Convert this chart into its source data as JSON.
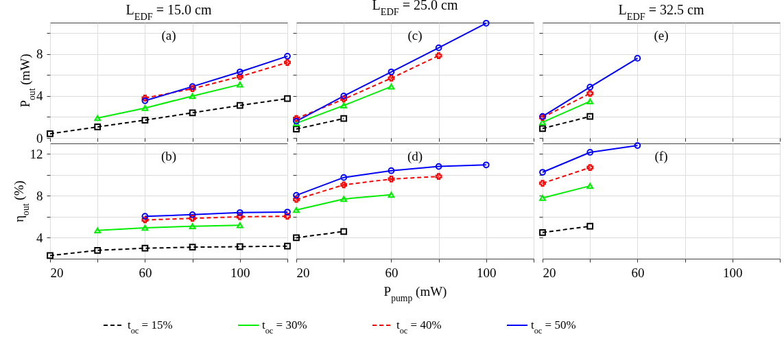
{
  "chart_data": [
    {
      "type": "line",
      "title": "L$_{EDF}$ = 15.0 cm",
      "ylabel": "P$_{out}$ (mW)",
      "annotations": [
        "(a)"
      ],
      "legend": "bottom",
      "x": [
        20,
        40,
        60,
        80,
        100,
        120
      ],
      "xlim": [
        20,
        120
      ],
      "xticks": [
        20,
        {
          "value": 40,
          "label": null
        },
        60,
        {
          "value": 80,
          "label": null
        },
        100,
        {
          "value": 120,
          "label": null
        }
      ],
      "ylim": [
        0,
        11
      ],
      "yticks": [
        0,
        {
          "value": 2,
          "label": null
        },
        4,
        {
          "value": 6,
          "label": null
        },
        8,
        {
          "value": 10,
          "label": null
        }
      ],
      "grid": true,
      "tick_labels": "y",
      "series": [
        {
          "name": "t$_{oc}$ = 15%",
          "color": "#000000",
          "marker": "square",
          "line_style": "dashed",
          "values": [
            0.4,
            1.05,
            1.7,
            2.4,
            3.1,
            3.75
          ]
        },
        {
          "name": "t$_{oc}$ = 30%",
          "color": "#00ee00",
          "marker": "triangle",
          "line_style": "solid",
          "values": [
            null,
            1.9,
            2.85,
            4.0,
            5.1,
            null
          ]
        },
        {
          "name": "t$_{oc}$ = 40%",
          "color": "#ff0000",
          "marker": "cross",
          "line_style": "dashed",
          "values": [
            null,
            null,
            3.8,
            4.7,
            5.85,
            7.2
          ]
        },
        {
          "name": "t$_{oc}$ = 50%",
          "color": "#0000ff",
          "marker": "circle",
          "line_style": "solid",
          "values": [
            null,
            null,
            3.55,
            4.9,
            6.3,
            7.8
          ]
        }
      ]
    },
    {
      "type": "line",
      "title": "L$_{EDF}$ = 25.0 cm",
      "annotations": [
        "(c)"
      ],
      "x": [
        20,
        40,
        60,
        80,
        100
      ],
      "xlim": [
        20,
        120
      ],
      "xticks": [
        20,
        {
          "value": 40,
          "label": null
        },
        60,
        {
          "value": 80,
          "label": null
        },
        100,
        {
          "value": 120,
          "label": null
        }
      ],
      "ylim": [
        0,
        11
      ],
      "yticks": [
        0,
        {
          "value": 2,
          "label": null
        },
        4,
        {
          "value": 6,
          "label": null
        },
        8,
        {
          "value": 10,
          "label": null
        }
      ],
      "grid": true,
      "tick_labels": false,
      "series": [
        {
          "color": "#000000",
          "marker": "square",
          "line_style": "dashed",
          "values": [
            0.85,
            1.85,
            null,
            null,
            null
          ]
        },
        {
          "color": "#00ee00",
          "marker": "triangle",
          "line_style": "solid",
          "values": [
            1.4,
            3.1,
            4.9,
            null,
            null
          ]
        },
        {
          "color": "#ff0000",
          "marker": "cross",
          "line_style": "dashed",
          "values": [
            1.85,
            3.7,
            5.7,
            7.85,
            null
          ]
        },
        {
          "color": "#0000ff",
          "marker": "circle",
          "line_style": "solid",
          "values": [
            1.6,
            4.0,
            6.3,
            8.6,
            10.95
          ]
        }
      ]
    },
    {
      "type": "line",
      "title": "L$_{EDF}$ = 32.5 cm",
      "annotations": [
        "(e)"
      ],
      "x": [
        20,
        40,
        60
      ],
      "xlim": [
        20,
        120
      ],
      "xticks": [
        20,
        {
          "value": 40,
          "label": null
        },
        60,
        {
          "value": 80,
          "label": null
        },
        100,
        {
          "value": 120,
          "label": null
        }
      ],
      "ylim": [
        0,
        11
      ],
      "yticks": [
        0,
        {
          "value": 2,
          "label": null
        },
        4,
        {
          "value": 6,
          "label": null
        },
        8,
        {
          "value": 10,
          "label": null
        }
      ],
      "grid": true,
      "tick_labels": false,
      "series": [
        {
          "color": "#000000",
          "marker": "square",
          "line_style": "dashed",
          "values": [
            0.9,
            2.05,
            null
          ]
        },
        {
          "color": "#00ee00",
          "marker": "triangle",
          "line_style": "solid",
          "values": [
            1.5,
            3.5,
            null
          ]
        },
        {
          "color": "#ff0000",
          "marker": "cross",
          "line_style": "dashed",
          "values": [
            1.95,
            4.25,
            null
          ]
        },
        {
          "color": "#0000ff",
          "marker": "circle",
          "line_style": "solid",
          "values": [
            2.05,
            4.85,
            7.6
          ]
        }
      ]
    },
    {
      "type": "line",
      "ylabel": "η$_{out}$ (%)",
      "annotations": [
        "(b)"
      ],
      "x": [
        20,
        40,
        60,
        80,
        100,
        120
      ],
      "xlim": [
        20,
        120
      ],
      "xticks": [
        20,
        {
          "value": 40,
          "label": null
        },
        60,
        {
          "value": 80,
          "label": null
        },
        100,
        {
          "value": 120,
          "label": null
        }
      ],
      "ylim": [
        2,
        13
      ],
      "yticks": [
        4,
        {
          "value": 6,
          "label": null
        },
        8,
        {
          "value": 10,
          "label": null
        },
        12
      ],
      "grid": true,
      "series": [
        {
          "color": "#000000",
          "marker": "square",
          "line_style": "dashed",
          "values": [
            2.3,
            2.8,
            3.0,
            3.1,
            3.15,
            3.2
          ]
        },
        {
          "color": "#00ee00",
          "marker": "triangle",
          "line_style": "solid",
          "values": [
            null,
            4.7,
            4.95,
            5.1,
            5.2,
            null
          ]
        },
        {
          "color": "#ff0000",
          "marker": "cross",
          "line_style": "dashed",
          "values": [
            null,
            null,
            5.7,
            5.85,
            6.0,
            6.05
          ]
        },
        {
          "color": "#0000ff",
          "marker": "circle",
          "line_style": "solid",
          "values": [
            null,
            null,
            6.05,
            6.2,
            6.4,
            6.45
          ]
        }
      ]
    },
    {
      "type": "line",
      "xlabel": "P$_{pump}$ (mW)",
      "annotations": [
        "(d)"
      ],
      "x": [
        20,
        40,
        60,
        80,
        100
      ],
      "xlim": [
        20,
        120
      ],
      "xticks": [
        20,
        {
          "value": 40,
          "label": null
        },
        60,
        {
          "value": 80,
          "label": null
        },
        100,
        {
          "value": 120,
          "label": null
        }
      ],
      "ylim": [
        2,
        13
      ],
      "yticks": [
        4,
        {
          "value": 6,
          "label": null
        },
        8,
        {
          "value": 10,
          "label": null
        },
        12
      ],
      "grid": true,
      "tick_labels": "x",
      "series": [
        {
          "color": "#000000",
          "marker": "square",
          "line_style": "dashed",
          "values": [
            4.0,
            4.6,
            null,
            null,
            null
          ]
        },
        {
          "color": "#00ee00",
          "marker": "triangle",
          "line_style": "solid",
          "values": [
            6.65,
            7.7,
            8.1,
            null,
            null
          ]
        },
        {
          "color": "#ff0000",
          "marker": "cross",
          "line_style": "dashed",
          "values": [
            7.65,
            9.05,
            9.6,
            9.85,
            null
          ]
        },
        {
          "color": "#0000ff",
          "marker": "circle",
          "line_style": "solid",
          "values": [
            8.05,
            9.75,
            10.4,
            10.8,
            10.95
          ]
        }
      ]
    },
    {
      "type": "line",
      "annotations": [
        "(f)"
      ],
      "x": [
        20,
        40,
        60
      ],
      "xlim": [
        20,
        120
      ],
      "xticks": [
        20,
        {
          "value": 40,
          "label": null
        },
        60,
        {
          "value": 80,
          "label": null
        },
        100,
        {
          "value": 120,
          "label": null
        }
      ],
      "ylim": [
        2,
        13
      ],
      "yticks": [
        4,
        {
          "value": 6,
          "label": null
        },
        8,
        {
          "value": 10,
          "label": null
        },
        12
      ],
      "grid": true,
      "tick_labels": "x",
      "series": [
        {
          "color": "#000000",
          "marker": "square",
          "line_style": "dashed",
          "values": [
            4.5,
            5.1,
            null
          ]
        },
        {
          "color": "#00ee00",
          "marker": "triangle",
          "line_style": "solid",
          "values": [
            7.8,
            8.95,
            null
          ]
        },
        {
          "color": "#ff0000",
          "marker": "cross",
          "line_style": "dashed",
          "values": [
            9.2,
            10.7,
            null
          ]
        },
        {
          "color": "#0000ff",
          "marker": "circle",
          "line_style": "solid",
          "values": [
            10.25,
            12.15,
            12.8
          ]
        }
      ]
    }
  ]
}
